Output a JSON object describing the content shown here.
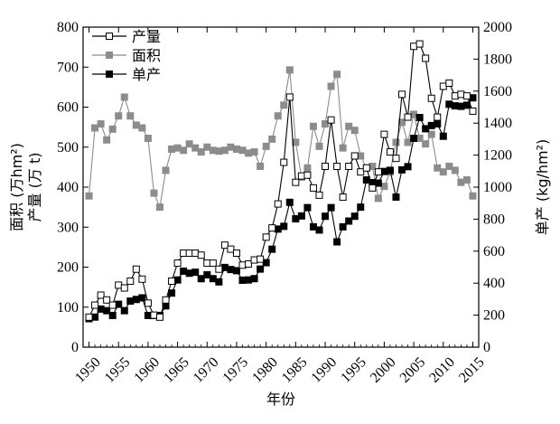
{
  "chart_data": {
    "type": "line",
    "x": [
      1950,
      1951,
      1952,
      1953,
      1954,
      1955,
      1956,
      1957,
      1958,
      1959,
      1960,
      1961,
      1962,
      1963,
      1964,
      1965,
      1966,
      1967,
      1968,
      1969,
      1970,
      1971,
      1972,
      1973,
      1974,
      1975,
      1976,
      1977,
      1978,
      1979,
      1980,
      1981,
      1982,
      1983,
      1984,
      1985,
      1986,
      1987,
      1988,
      1989,
      1990,
      1991,
      1992,
      1993,
      1994,
      1995,
      1996,
      1997,
      1998,
      1999,
      2000,
      2001,
      2002,
      2003,
      2004,
      2005,
      2006,
      2007,
      2008,
      2009,
      2010,
      2011,
      2012,
      2013,
      2014,
      2015
    ],
    "xlabel": "年份",
    "xlim": [
      1949,
      2016
    ],
    "xticks": [
      1950,
      1955,
      1960,
      1965,
      1970,
      1975,
      1980,
      1985,
      1990,
      1995,
      2000,
      2005,
      2010,
      2015
    ],
    "y_left": {
      "label_line1": "面积 (万hm²)",
      "label_line2": "产量 (万 t)",
      "lim": [
        0,
        800
      ],
      "ticks": [
        0,
        100,
        200,
        300,
        400,
        500,
        600,
        700,
        800
      ]
    },
    "y_right": {
      "label": "单产 (kg/hm²)",
      "lim": [
        0,
        2000
      ],
      "ticks": [
        0,
        200,
        400,
        600,
        800,
        1000,
        1200,
        1400,
        1600,
        1800,
        2000
      ]
    },
    "series": [
      {
        "name": "产量",
        "axis": "left",
        "marker": "square-open",
        "color": "#000000",
        "values": [
          75,
          105,
          130,
          118,
          105,
          155,
          148,
          165,
          195,
          170,
          110,
          80,
          75,
          118,
          165,
          210,
          235,
          235,
          235,
          230,
          210,
          210,
          195,
          255,
          245,
          235,
          205,
          208,
          218,
          220,
          275,
          298,
          358,
          462,
          625,
          412,
          428,
          430,
          398,
          380,
          452,
          568,
          452,
          375,
          452,
          478,
          438,
          448,
          398,
          438,
          532,
          488,
          472,
          632,
          575,
          752,
          758,
          722,
          622,
          575,
          652,
          660,
          628,
          632,
          628,
          590
        ],
        "values_right": null
      },
      {
        "name": "面积",
        "axis": "left",
        "marker": "square-filled",
        "color": "#8c8c8c",
        "values": [
          378,
          548,
          558,
          518,
          545,
          578,
          625,
          578,
          555,
          548,
          522,
          385,
          350,
          442,
          495,
          498,
          492,
          508,
          498,
          488,
          500,
          492,
          490,
          492,
          500,
          495,
          492,
          485,
          488,
          452,
          502,
          520,
          578,
          605,
          693,
          512,
          425,
          448,
          552,
          502,
          558,
          652,
          682,
          498,
          552,
          542,
          478,
          448,
          452,
          372,
          402,
          438,
          512,
          562,
          512,
          582,
          522,
          508,
          532,
          448,
          438,
          452,
          442,
          412,
          418,
          378
        ]
      },
      {
        "name": "单产",
        "axis": "right",
        "marker": "square-filled",
        "color": "#000000",
        "values": [
          178,
          188,
          238,
          228,
          198,
          268,
          228,
          288,
          298,
          308,
          198,
          198,
          198,
          258,
          338,
          420,
          475,
          462,
          468,
          428,
          452,
          428,
          408,
          498,
          485,
          478,
          418,
          420,
          428,
          488,
          528,
          612,
          738,
          755,
          905,
          802,
          820,
          872,
          752,
          732,
          818,
          872,
          658,
          752,
          788,
          818,
          875,
          1045,
          1028,
          1025,
          1098,
          1105,
          938,
          1108,
          1128,
          1305,
          1435,
          1365,
          1385,
          1395,
          1318,
          1518,
          1508,
          1505,
          1512,
          1558
        ]
      }
    ],
    "legend": {
      "placement": "top-left",
      "entries": [
        "产量",
        "面积",
        "单产"
      ]
    }
  }
}
